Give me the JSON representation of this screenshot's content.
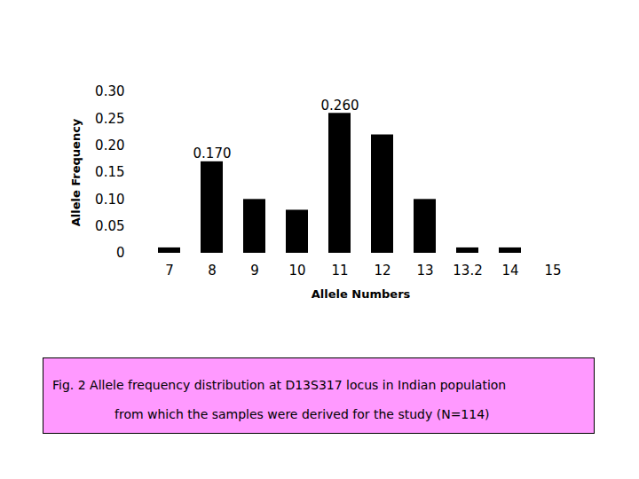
{
  "chart_data": {
    "type": "bar",
    "caption": "Fig. 2 Allele frequency distribution at D13S317 locus in Indian population from which the samples were derived for the study (N=114)",
    "x_label": "Allele Numbers",
    "y_label": "Allele Frequency",
    "categories": [
      "7",
      "8",
      "9",
      "10",
      "11",
      "12",
      "13",
      "13.2",
      "14",
      "15"
    ],
    "values": [
      0.01,
      0.17,
      0.1,
      0.08,
      0.26,
      0.22,
      0.1,
      0.01,
      0.01,
      0
    ],
    "value_labels": [
      null,
      "0.170",
      null,
      null,
      "0.260",
      null,
      null,
      null,
      null,
      null
    ],
    "data_labels": true,
    "color": "#000000",
    "ylim": [
      0,
      0.3
    ],
    "yticks": [
      0,
      0.05,
      {
        "value": 0.1,
        "label": "0.10"
      },
      0.15,
      {
        "value": 0.2,
        "label": "0.20"
      },
      0.25,
      {
        "value": 0.3,
        "label": "0.30"
      }
    ],
    "grid": false
  }
}
